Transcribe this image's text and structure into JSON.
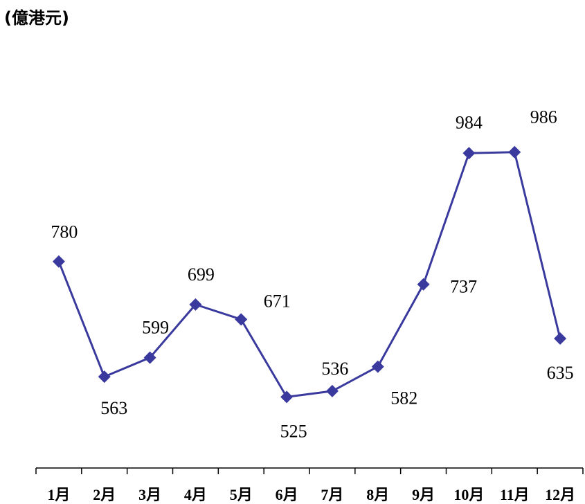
{
  "chart_data": {
    "type": "line",
    "unit_label": "(億港元)",
    "categories": [
      "1月",
      "2月",
      "3月",
      "4月",
      "5月",
      "6月",
      "7月",
      "8月",
      "9月",
      "10月",
      "11月",
      "12月"
    ],
    "series": [
      {
        "values": [
          780,
          563,
          599,
          699,
          671,
          525,
          536,
          582,
          737,
          984,
          986,
          635
        ]
      }
    ],
    "data_labels": [
      "780",
      "563",
      "599",
      "699",
      "671",
      "525",
      "536",
      "582",
      "737",
      "984",
      "986",
      "635"
    ],
    "line_color": "#3a3a9e",
    "marker": "diamond",
    "grid": false,
    "legend": "none"
  }
}
